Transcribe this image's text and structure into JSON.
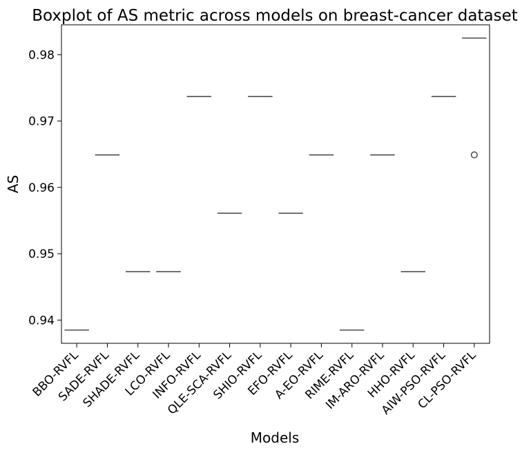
{
  "chart_data": {
    "type": "box",
    "title": "Boxplot of AS metric across models on breast-cancer dataset",
    "xlabel": "Models",
    "ylabel": "AS",
    "ylim": [
      0.9365,
      0.9845
    ],
    "yticks": [
      "0.94",
      "0.95",
      "0.96",
      "0.97",
      "0.98"
    ],
    "ytick_values": [
      0.94,
      0.95,
      0.96,
      0.97,
      0.98
    ],
    "grid": false,
    "box_color": "#4d4d4d",
    "outlier_color": "#3a3a3a",
    "categories": [
      "BBO-RVFL",
      "SADE-RVFL",
      "SHADE-RVFL",
      "LCO-RVFL",
      "INFO-RVFL",
      "QLE-SCA-RVFL",
      "SHIO-RVFL",
      "EFO-RVFL",
      "A-EO-RVFL",
      "RIME-RVFL",
      "IM-ARO-RVFL",
      "HHO-RVFL",
      "AIW-PSO-RVFL",
      "CL-PSO-RVFL"
    ],
    "values": [
      0.9385,
      0.9649,
      0.9473,
      0.9473,
      0.9737,
      0.9561,
      0.9737,
      0.9561,
      0.9649,
      0.9385,
      0.9649,
      0.9473,
      0.9737,
      0.9825
    ],
    "outliers": [
      {
        "category": "CL-PSO-RVFL",
        "value": 0.9649
      }
    ]
  }
}
